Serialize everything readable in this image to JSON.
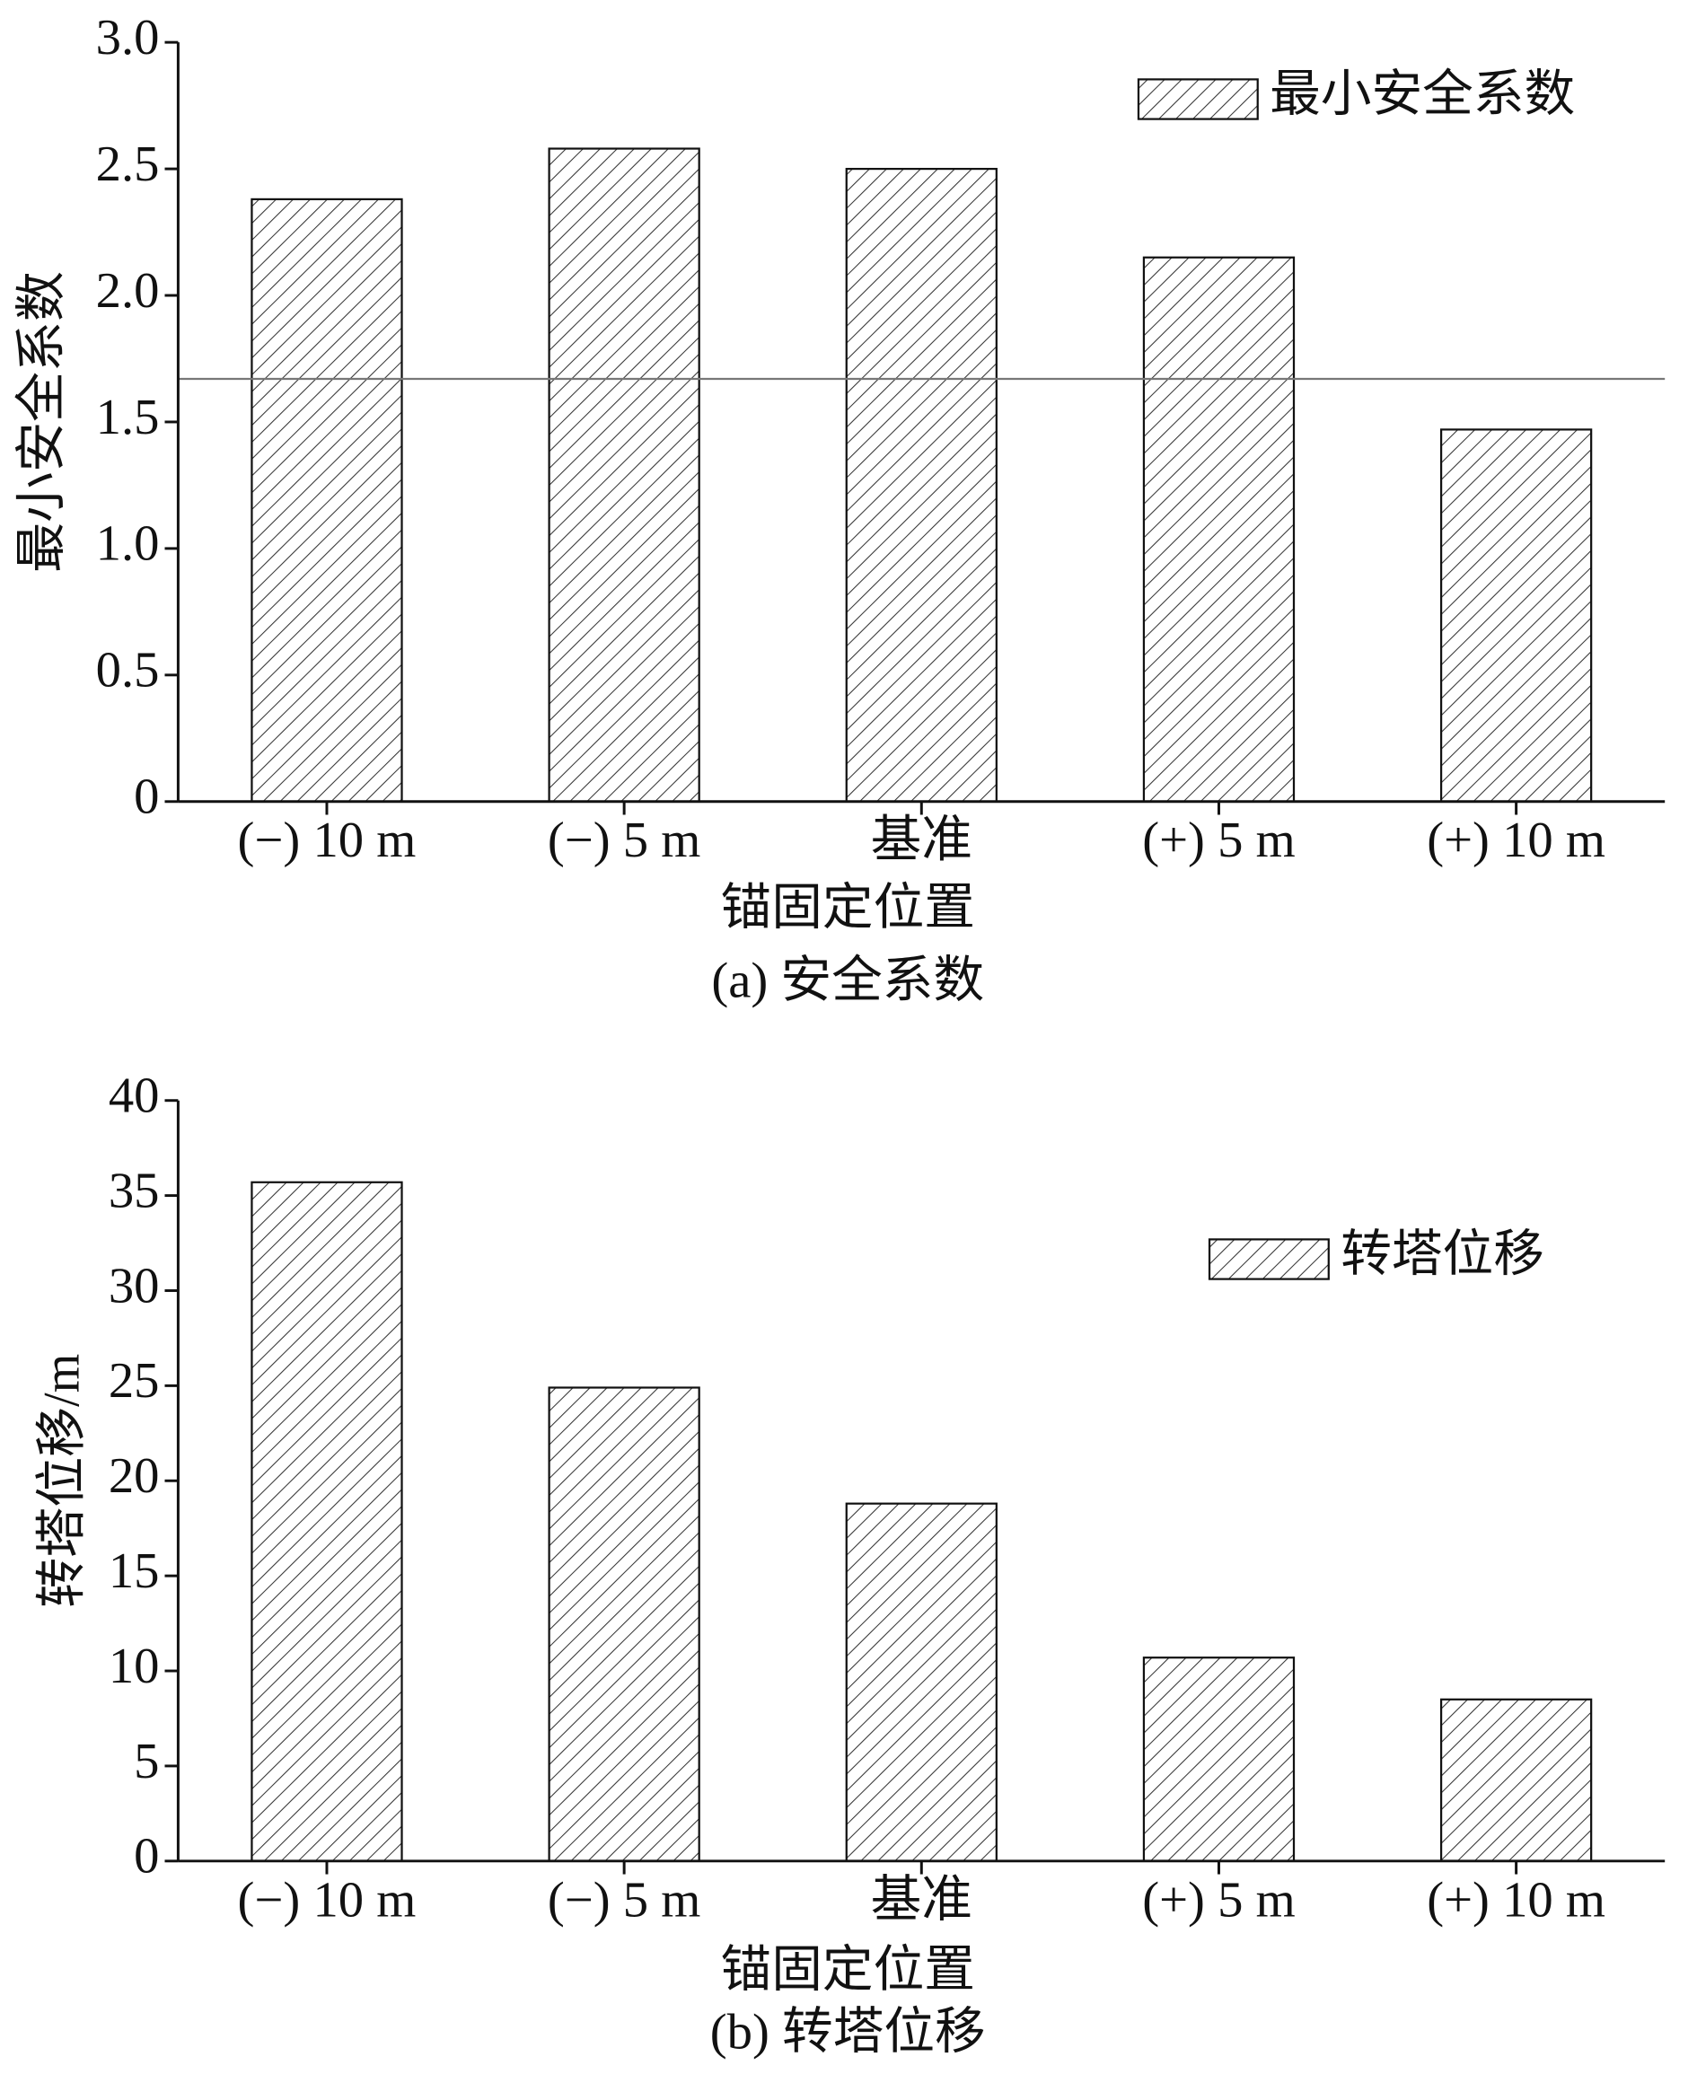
{
  "chart_data": [
    {
      "type": "bar",
      "caption": "(a) 安全系数",
      "x_label": "锚固定位置",
      "y_label": "最小安全系数",
      "categories": [
        "(−) 10 m",
        "(−) 5 m",
        "基准",
        "(+) 5 m",
        "(+) 10 m"
      ],
      "series": [
        {
          "name": "最小安全系数",
          "color": "#333333",
          "values": [
            2.38,
            2.58,
            2.5,
            2.15,
            1.47
          ]
        }
      ],
      "ylim": [
        0,
        3
      ],
      "yticks": [
        0,
        0.5,
        {
          "value": 1,
          "label": "1.0"
        },
        1.5,
        {
          "value": 2,
          "label": "2.0"
        },
        2.5,
        {
          "value": 3,
          "label": "3.0"
        }
      ],
      "hline": 1.67,
      "legend": "upper right"
    },
    {
      "type": "bar",
      "caption": "(b) 转塔位移",
      "x_label": "锚固定位置",
      "y_label": "转塔位移/m",
      "categories": [
        "(−) 10 m",
        "(−) 5 m",
        "基准",
        "(+) 5 m",
        "(+) 10 m"
      ],
      "series": [
        {
          "name": "转塔位移",
          "color": "#333333",
          "values": [
            35.7,
            24.9,
            18.8,
            10.7,
            8.5
          ]
        }
      ],
      "ylim": [
        0,
        40
      ],
      "yticks": [
        0,
        5,
        10,
        15,
        20,
        25,
        30,
        35,
        40
      ],
      "legend": "upper right"
    }
  ]
}
